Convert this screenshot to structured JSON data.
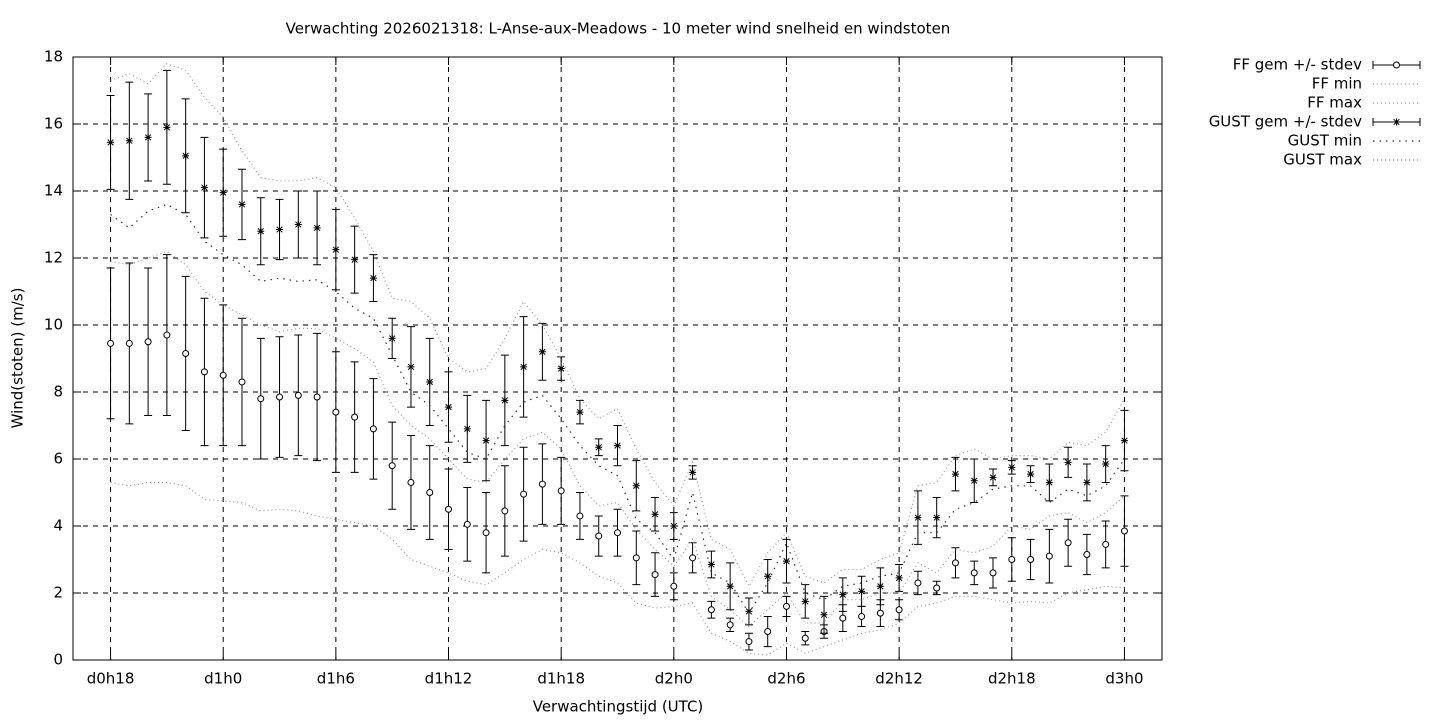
{
  "chart_data": {
    "type": "errorbar-line",
    "title": "Verwachting 2026021318: L-Anse-aux-Meadows - 10 meter wind snelheid en windstoten",
    "xlabel": "Verwachtingstijd (UTC)",
    "ylabel": "Wind(stoten) (m/s)",
    "x": [
      18,
      19,
      20,
      21,
      22,
      23,
      24,
      25,
      26,
      27,
      28,
      29,
      30,
      31,
      32,
      33,
      34,
      35,
      36,
      37,
      38,
      39,
      40,
      41,
      42,
      43,
      44,
      45,
      46,
      47,
      48,
      49,
      50,
      51,
      52,
      53,
      54,
      55,
      56,
      57,
      58,
      59,
      60,
      61,
      62,
      63,
      64,
      65,
      66,
      67,
      68,
      69,
      70,
      71,
      72
    ],
    "xlim": [
      16,
      74
    ],
    "xticks": [
      {
        "value": 18,
        "label": "d0h18"
      },
      {
        "value": 24,
        "label": "d1h0"
      },
      {
        "value": 30,
        "label": "d1h6"
      },
      {
        "value": 36,
        "label": "d1h12"
      },
      {
        "value": 42,
        "label": "d1h18"
      },
      {
        "value": 48,
        "label": "d2h0"
      },
      {
        "value": 54,
        "label": "d2h6"
      },
      {
        "value": 60,
        "label": "d2h12"
      },
      {
        "value": 66,
        "label": "d2h18"
      },
      {
        "value": 72,
        "label": "d3h0"
      }
    ],
    "ylim": [
      0,
      18
    ],
    "yticks": [
      0,
      2,
      4,
      6,
      8,
      10,
      12,
      14,
      16,
      18
    ],
    "grid": true,
    "legend": "outside-right",
    "series": [
      {
        "name": "FF gem +/- stdev",
        "color": "#000000",
        "style": "errorbar",
        "marker": "circle",
        "values": [
          9.45,
          9.45,
          9.5,
          9.7,
          9.15,
          8.6,
          8.5,
          8.3,
          7.8,
          7.85,
          7.9,
          7.85,
          7.4,
          7.25,
          6.9,
          5.8,
          5.3,
          5.0,
          4.5,
          4.05,
          3.8,
          4.45,
          4.95,
          5.25,
          5.05,
          4.3,
          3.7,
          3.8,
          3.05,
          2.55,
          2.2,
          3.05,
          1.5,
          1.05,
          0.55,
          0.85,
          1.6,
          0.65,
          0.85,
          1.25,
          1.3,
          1.4,
          1.5,
          2.3,
          2.15,
          2.9,
          2.6,
          2.6,
          3.0,
          3.0,
          3.1,
          3.5,
          3.15,
          3.45,
          3.85
        ],
        "errors": [
          2.25,
          2.4,
          2.2,
          2.4,
          2.3,
          2.2,
          2.1,
          1.9,
          1.8,
          1.8,
          1.8,
          1.9,
          1.8,
          1.65,
          1.5,
          1.3,
          1.4,
          1.4,
          1.2,
          1.1,
          1.2,
          1.35,
          1.4,
          1.2,
          1.0,
          0.7,
          0.6,
          0.7,
          0.8,
          0.65,
          0.4,
          0.45,
          0.25,
          0.2,
          0.25,
          0.45,
          0.3,
          0.2,
          0.2,
          0.4,
          0.3,
          0.4,
          0.3,
          0.35,
          0.2,
          0.45,
          0.35,
          0.45,
          0.65,
          0.6,
          0.8,
          0.7,
          0.6,
          0.7,
          1.05
        ]
      },
      {
        "name": "FF min",
        "color": "#999999",
        "style": "dots",
        "dash": "1,3",
        "values": [
          5.3,
          5.2,
          5.3,
          5.3,
          5.2,
          4.8,
          4.75,
          4.7,
          4.45,
          4.5,
          4.45,
          4.3,
          4.2,
          4.1,
          4.0,
          3.6,
          3.0,
          2.8,
          2.6,
          2.35,
          2.25,
          2.6,
          3.0,
          3.3,
          3.2,
          2.9,
          2.5,
          2.3,
          1.7,
          1.55,
          1.6,
          1.7,
          0.8,
          0.55,
          0.2,
          0.15,
          0.5,
          0.2,
          0.4,
          0.6,
          0.8,
          0.9,
          1.1,
          1.6,
          1.7,
          1.9,
          1.9,
          1.8,
          1.7,
          1.75,
          1.7,
          2.0,
          2.1,
          2.2,
          2.15
        ]
      },
      {
        "name": "FF max",
        "color": "#999999",
        "style": "dots",
        "dash": "1,3",
        "values": [
          11.9,
          11.8,
          12.0,
          12.2,
          11.8,
          11.0,
          10.6,
          10.3,
          10.0,
          9.8,
          9.9,
          9.9,
          9.6,
          9.3,
          8.9,
          7.6,
          7.0,
          6.6,
          6.0,
          5.4,
          5.3,
          6.0,
          6.6,
          6.8,
          6.3,
          5.2,
          4.6,
          4.7,
          3.9,
          3.3,
          2.8,
          3.6,
          1.9,
          1.5,
          1.0,
          1.5,
          2.0,
          1.1,
          1.1,
          1.8,
          1.8,
          2.0,
          2.0,
          2.9,
          2.6,
          3.3,
          3.2,
          3.4,
          4.0,
          3.9,
          4.3,
          4.4,
          4.1,
          4.4,
          4.9
        ]
      },
      {
        "name": "GUST gem +/- stdev",
        "color": "#000000",
        "style": "errorbar",
        "marker": "star",
        "values": [
          15.45,
          15.5,
          15.6,
          15.9,
          15.05,
          14.1,
          13.95,
          13.6,
          12.8,
          12.85,
          13.0,
          12.9,
          12.25,
          11.95,
          11.4,
          9.6,
          8.75,
          8.3,
          7.55,
          6.9,
          6.55,
          7.75,
          8.75,
          9.2,
          8.7,
          7.4,
          6.35,
          6.4,
          5.2,
          4.35,
          4.0,
          5.6,
          2.85,
          2.2,
          1.45,
          2.5,
          2.95,
          1.75,
          1.35,
          1.95,
          2.05,
          2.2,
          2.45,
          4.25,
          4.25,
          5.55,
          5.35,
          5.45,
          5.75,
          5.55,
          5.3,
          5.9,
          5.3,
          5.85,
          6.55
        ],
        "errors": [
          1.4,
          1.75,
          1.3,
          1.7,
          1.7,
          1.5,
          1.3,
          1.05,
          1.0,
          0.9,
          1.0,
          1.1,
          1.2,
          1.0,
          0.7,
          0.6,
          1.2,
          1.3,
          1.05,
          1.0,
          1.2,
          1.35,
          1.5,
          0.85,
          0.35,
          0.35,
          0.25,
          0.6,
          0.75,
          0.5,
          0.4,
          0.2,
          0.4,
          0.7,
          0.4,
          0.5,
          0.65,
          0.5,
          0.55,
          0.5,
          0.45,
          0.55,
          0.4,
          0.8,
          0.6,
          0.5,
          0.65,
          0.25,
          0.2,
          0.25,
          0.55,
          0.45,
          0.55,
          0.55,
          0.9
        ]
      },
      {
        "name": "GUST min",
        "color": "#333333",
        "style": "dots",
        "dash": "1.5,5",
        "values": [
          13.3,
          12.9,
          13.4,
          13.6,
          13.3,
          12.5,
          12.1,
          11.8,
          11.3,
          11.4,
          11.3,
          11.35,
          11.0,
          10.5,
          10.2,
          9.1,
          8.0,
          7.6,
          6.9,
          6.2,
          6.0,
          7.0,
          7.7,
          7.9,
          7.2,
          6.4,
          5.8,
          5.5,
          4.2,
          3.8,
          3.0,
          5.0,
          2.6,
          2.3,
          1.4,
          2.3,
          3.5,
          2.0,
          1.8,
          2.2,
          2.3,
          2.5,
          2.6,
          3.8,
          3.8,
          4.5,
          4.7,
          5.1,
          5.2,
          5.2,
          4.7,
          5.1,
          4.9,
          5.2,
          6.0
        ]
      },
      {
        "name": "GUST max",
        "color": "#999999",
        "style": "dots",
        "dash": "1,3",
        "values": [
          17.3,
          17.5,
          17.2,
          17.8,
          17.6,
          16.8,
          16.2,
          15.2,
          14.4,
          14.3,
          14.3,
          14.4,
          14.1,
          13.2,
          12.2,
          10.8,
          10.7,
          10.2,
          9.0,
          8.6,
          8.7,
          9.6,
          10.7,
          10.0,
          9.0,
          7.8,
          7.2,
          7.5,
          6.3,
          5.3,
          4.6,
          5.9,
          3.6,
          3.3,
          2.2,
          3.2,
          3.8,
          2.5,
          2.3,
          2.7,
          2.7,
          3.0,
          3.2,
          5.2,
          5.3,
          6.1,
          6.3,
          6.0,
          6.1,
          6.1,
          6.0,
          6.5,
          6.4,
          6.8,
          7.8
        ]
      }
    ]
  }
}
